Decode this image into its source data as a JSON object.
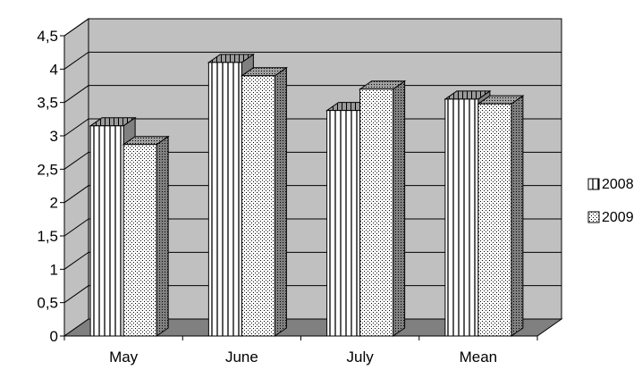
{
  "chart_data": {
    "type": "bar",
    "variant": "3d-clustered",
    "categories": [
      "May",
      "June",
      "July",
      "Mean"
    ],
    "series": [
      {
        "name": "2008",
        "values": [
          3.15,
          4.1,
          3.38,
          3.55
        ],
        "pattern": "vertical-stripes"
      },
      {
        "name": "2009",
        "values": [
          2.87,
          3.9,
          3.7,
          3.48
        ],
        "pattern": "dots"
      }
    ],
    "y_ticks": [
      "0",
      "0,5",
      "1",
      "1,5",
      "2",
      "2,5",
      "3",
      "3,5",
      "4",
      "4,5"
    ],
    "ylim": [
      0,
      4.5
    ],
    "grid": true,
    "legend_position": "right",
    "colors": {
      "wall": "#c0c0c0",
      "floor": "#808080",
      "bar_face": "#ffffff",
      "bar_side": "#808080",
      "grid": "#000000"
    }
  }
}
